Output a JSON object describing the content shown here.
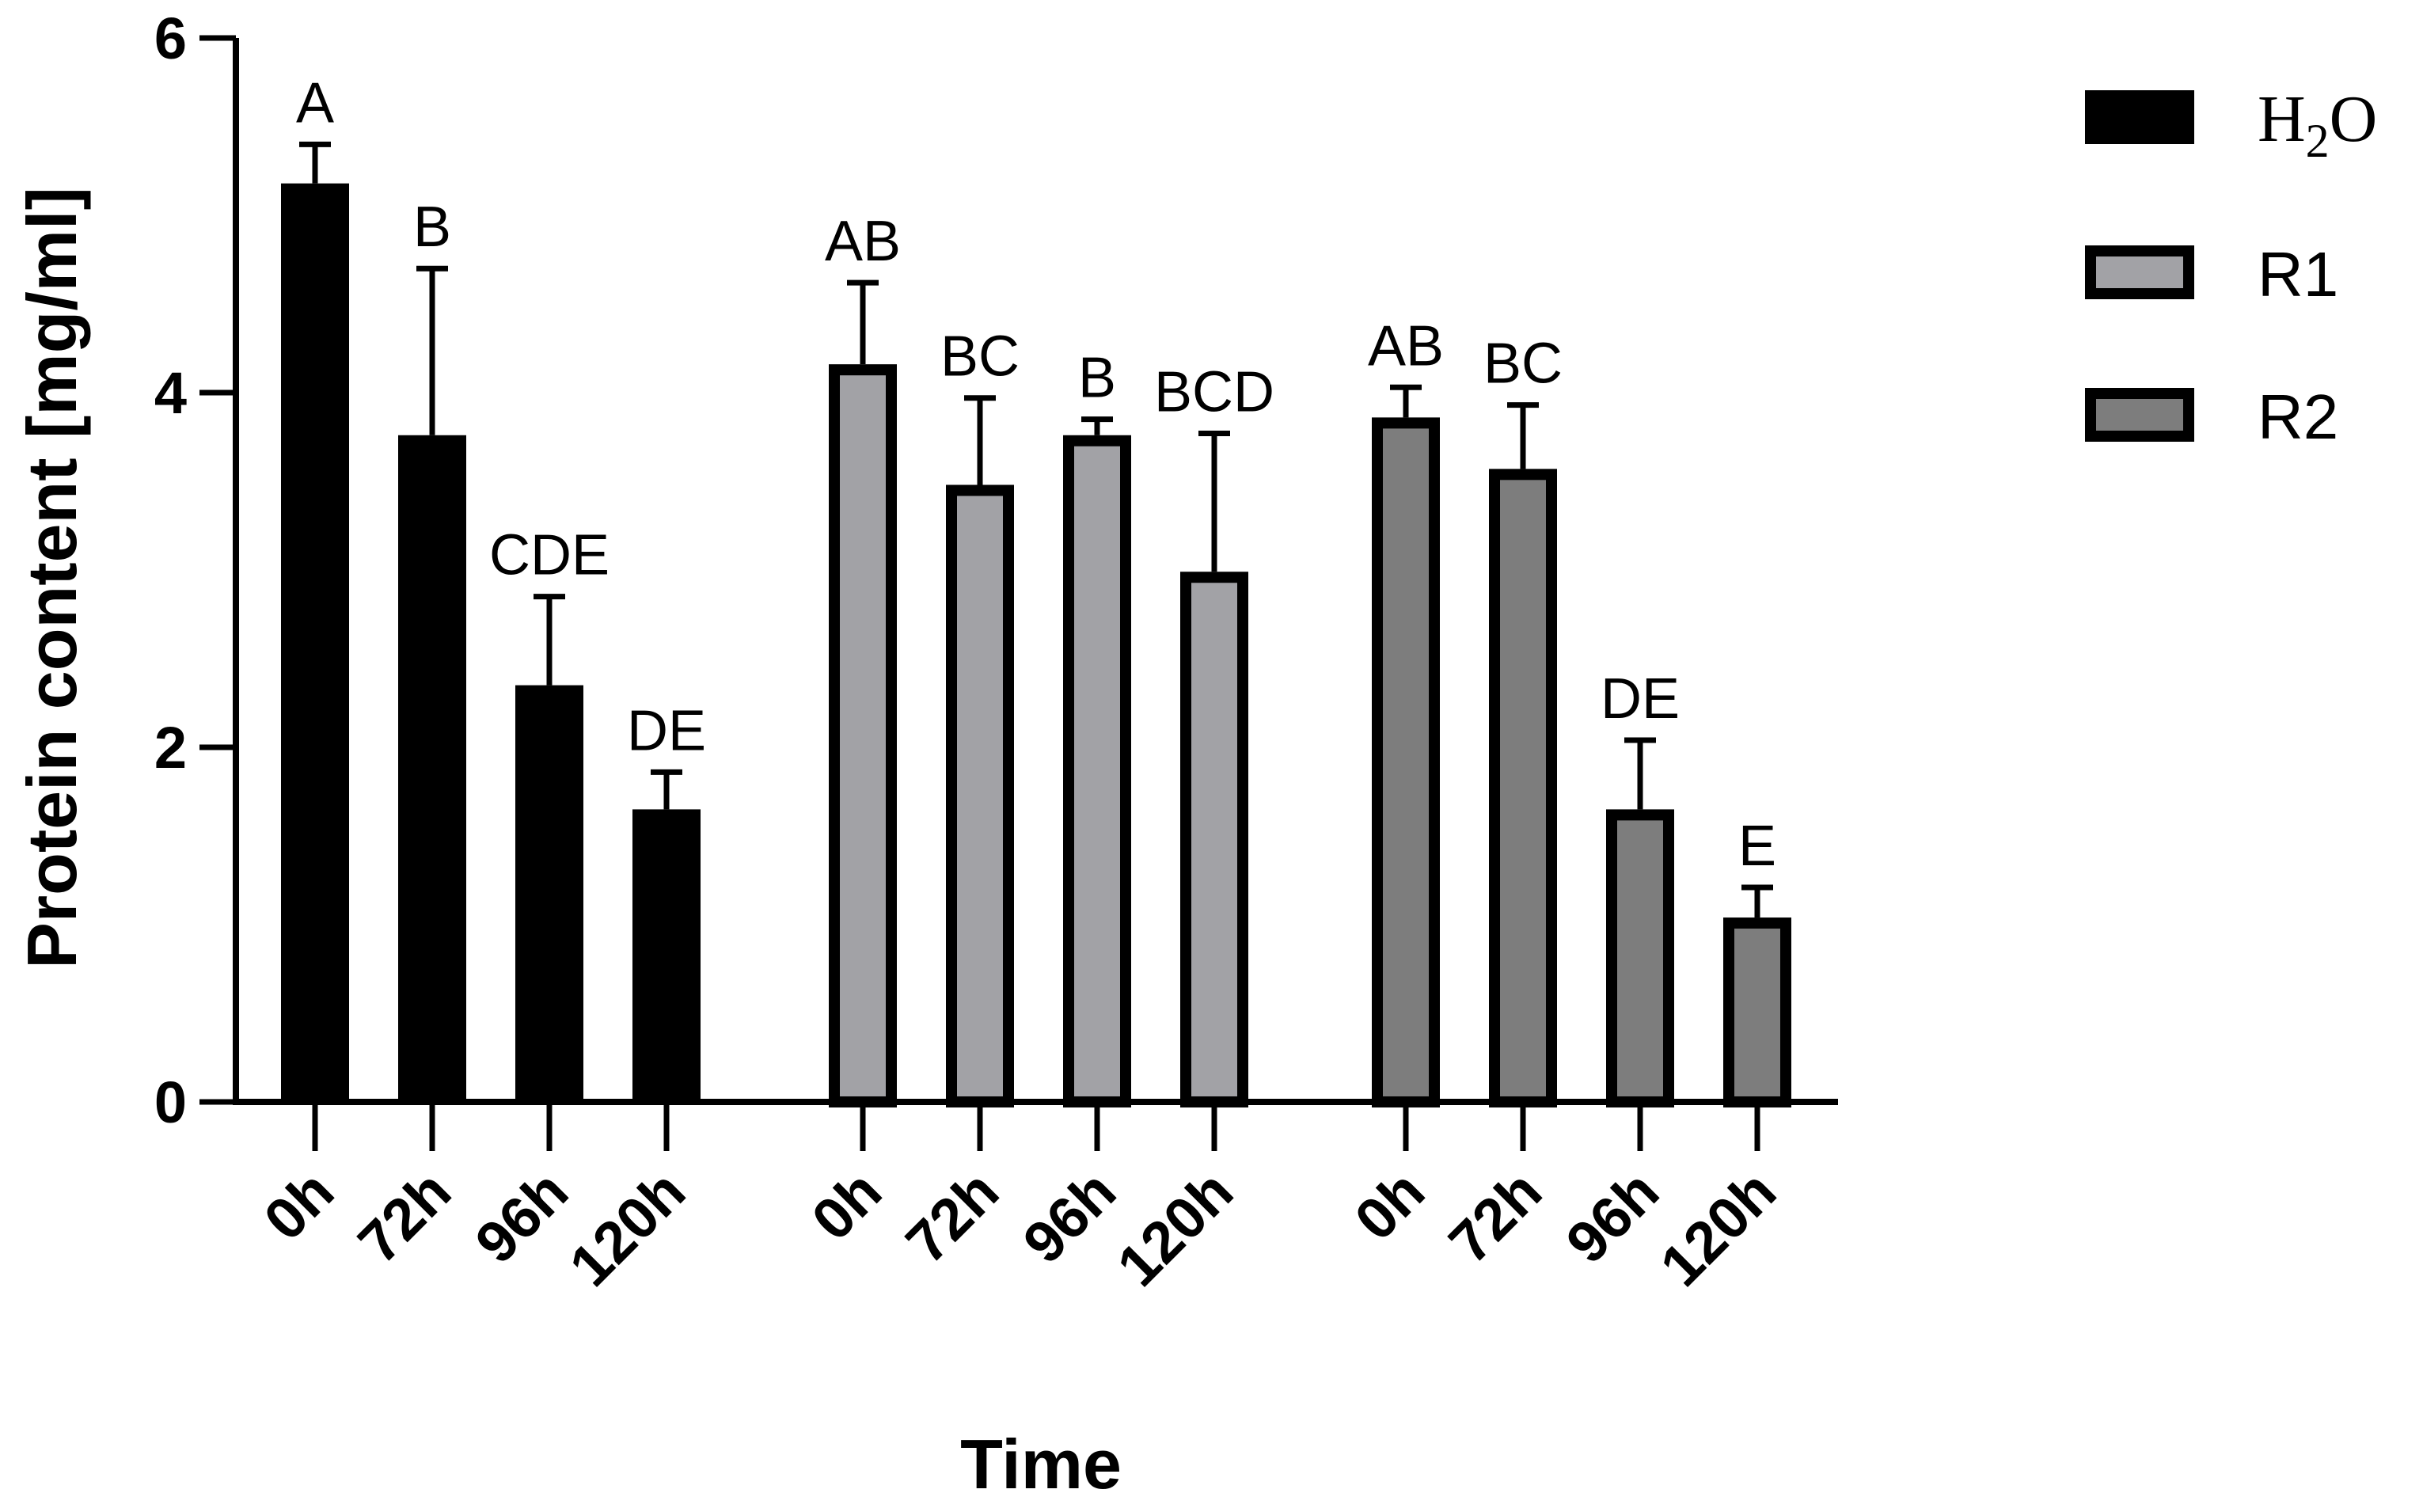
{
  "chart_data": {
    "type": "bar",
    "xlabel": "Time",
    "ylabel": "Protein content [mg/ml]",
    "ylim": [
      0,
      6
    ],
    "yticks": [
      "0",
      "2",
      "4",
      "6"
    ],
    "grid": false,
    "legend_position": "top-right",
    "groups": [
      {
        "legend": "H2O",
        "legend_main": "H",
        "legend_sub": "2",
        "legend_tail": "O",
        "fill": "#000000",
        "categories": [
          "0h",
          "72h",
          "96h",
          "120h"
        ],
        "values": [
          5.18,
          3.76,
          2.35,
          1.65
        ],
        "errors": [
          0.22,
          0.94,
          0.5,
          0.21
        ],
        "letters": [
          "A",
          "B",
          "CDE",
          "DE"
        ]
      },
      {
        "legend": "R1",
        "fill": "#a2a2a6",
        "categories": [
          "0h",
          "72h",
          "96h",
          "120h"
        ],
        "values": [
          4.16,
          3.48,
          3.76,
          2.99
        ],
        "errors": [
          0.46,
          0.49,
          0.09,
          0.78
        ],
        "letters": [
          "AB",
          "BC",
          "B",
          "BCD"
        ]
      },
      {
        "legend": "R2",
        "fill": "#7d7d7d",
        "categories": [
          "0h",
          "72h",
          "96h",
          "120h"
        ],
        "values": [
          3.86,
          3.57,
          1.65,
          1.04
        ],
        "errors": [
          0.17,
          0.36,
          0.39,
          0.17
        ],
        "letters": [
          "AB",
          "BC",
          "DE",
          "E"
        ]
      }
    ]
  }
}
